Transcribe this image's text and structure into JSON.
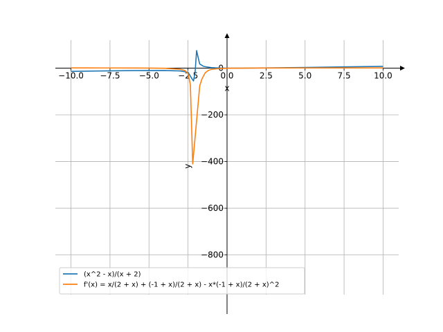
{
  "chart_data": {
    "type": "line",
    "title": "",
    "xlabel": "x",
    "ylabel": "y",
    "xlim": [
      -11,
      11
    ],
    "ylim": [
      -970,
      120
    ],
    "grid": true,
    "legend_position": "lower-left",
    "x_ticks": [
      -10.0,
      -7.5,
      -5.0,
      -2.5,
      0.0,
      2.5,
      5.0,
      7.5,
      10.0
    ],
    "x_tick_labels": [
      "−10.0",
      "−7.5",
      "−5.0",
      "−2.5",
      "0.0",
      "2.5",
      "5.0",
      "7.5",
      "10.0"
    ],
    "y_ticks": [
      0,
      -200,
      -400,
      -600,
      -800
    ],
    "y_tick_labels": [
      "0",
      "−200",
      "−400",
      "−600",
      "−800"
    ],
    "series": [
      {
        "name": "(x^2 - x)/(x + 2)",
        "color": "#1f77b4",
        "points": [
          [
            -10,
            -13.8
          ],
          [
            -8,
            -12.0
          ],
          [
            -6,
            -10.5
          ],
          [
            -4,
            -10.0
          ],
          [
            -3,
            -12.0
          ],
          [
            -2.5,
            -17.5
          ],
          [
            -2.25,
            -45
          ],
          [
            -2.15,
            -55
          ],
          [
            -2.05,
            -20
          ],
          [
            -1.95,
            75
          ],
          [
            -1.85,
            45
          ],
          [
            -1.75,
            17.5
          ],
          [
            -1.5,
            7.5
          ],
          [
            -1.0,
            2.0
          ],
          [
            -0.5,
            0.5
          ],
          [
            0,
            0
          ],
          [
            1,
            0
          ],
          [
            2.5,
            0.9
          ],
          [
            5,
            2.9
          ],
          [
            7.5,
            5.3
          ],
          [
            10,
            7.5
          ]
        ]
      },
      {
        "name": "f'(x) = x/(2 + x) + (-1 + x)/(2 + x) - x*(-1 + x)/(2 + x)^2",
        "color": "#ff7f0e",
        "points": [
          [
            -10,
            0.9
          ],
          [
            -8,
            0.8
          ],
          [
            -6,
            0.6
          ],
          [
            -5,
            0.3
          ],
          [
            -4,
            -0.5
          ],
          [
            -3,
            -5
          ],
          [
            -2.7,
            -10
          ],
          [
            -2.5,
            -23
          ],
          [
            -2.35,
            -70
          ],
          [
            -2.2,
            -410
          ],
          [
            -1.75,
            -75
          ],
          [
            -1.6,
            -45
          ],
          [
            -1.4,
            -20
          ],
          [
            -1.2,
            -10
          ],
          [
            -1.0,
            -5
          ],
          [
            -0.5,
            -1.5
          ],
          [
            0,
            -0.5
          ],
          [
            2.5,
            0.6
          ],
          [
            5,
            0.8
          ],
          [
            7.5,
            0.9
          ],
          [
            10,
            0.9
          ]
        ]
      }
    ]
  }
}
